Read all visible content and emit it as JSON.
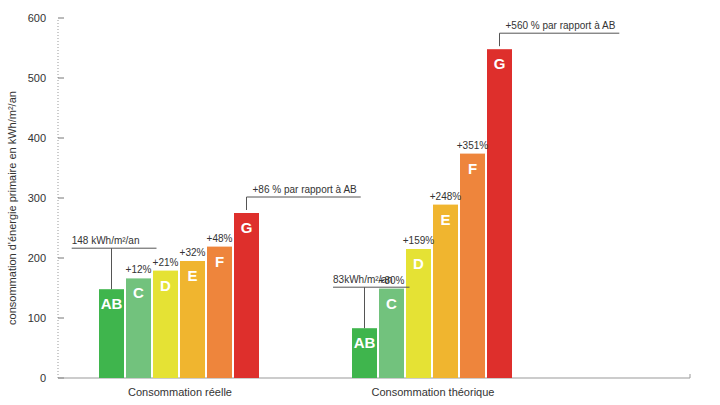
{
  "chart_data": {
    "type": "bar",
    "y_label": "consommation d'énergie primaire en kWh/m²/an",
    "categories": [
      "Consommation réelle",
      "Consommation théorique"
    ],
    "series": [
      {
        "name": "AB",
        "color": "#3fb54d",
        "values": [
          148,
          83
        ],
        "annotations": [
          "148 kWh/m²/an",
          "83kWh/m²/an"
        ]
      },
      {
        "name": "C",
        "color": "#72c27d",
        "values": [
          166,
          149
        ],
        "annotations": [
          "+12%",
          "+80%"
        ]
      },
      {
        "name": "D",
        "color": "#e5e234",
        "values": [
          179,
          215
        ],
        "annotations": [
          "+21%",
          "+159%"
        ]
      },
      {
        "name": "E",
        "color": "#f0b52f",
        "values": [
          195,
          289
        ],
        "annotations": [
          "+32%",
          "+248%"
        ]
      },
      {
        "name": "F",
        "color": "#ee853c",
        "values": [
          219,
          374
        ],
        "annotations": [
          "+48%",
          "+351%"
        ]
      },
      {
        "name": "G",
        "color": "#de2f2c",
        "values": [
          275,
          548
        ],
        "annotations": [
          "+86 % par rapport à AB",
          "+560 % par rapport à AB"
        ]
      }
    ],
    "ylim": [
      0,
      600
    ],
    "yticks": [
      0,
      100,
      200,
      300,
      400,
      500,
      600
    ],
    "grid": false
  }
}
